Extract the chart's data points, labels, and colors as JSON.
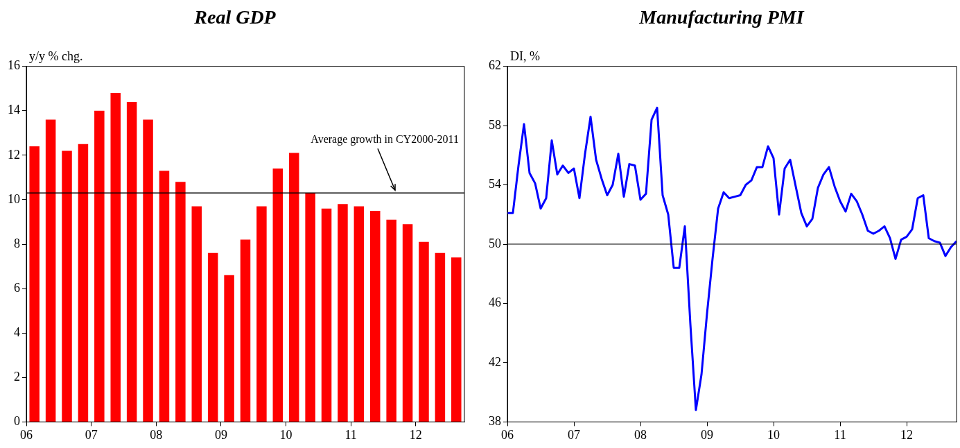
{
  "chart_data": [
    {
      "type": "bar",
      "title": "Real GDP",
      "ylabel": "y/y % chg.",
      "x": [
        2006.125,
        2006.375,
        2006.625,
        2006.875,
        2007.125,
        2007.375,
        2007.625,
        2007.875,
        2008.125,
        2008.375,
        2008.625,
        2008.875,
        2009.125,
        2009.375,
        2009.625,
        2009.875,
        2010.125,
        2010.375,
        2010.625,
        2010.875,
        2011.125,
        2011.375,
        2011.625,
        2011.875,
        2012.125,
        2012.375,
        2012.625
      ],
      "series": [
        {
          "color": "#ff0000",
          "values": [
            12.4,
            13.6,
            12.2,
            12.5,
            14.0,
            14.8,
            14.4,
            13.6,
            11.3,
            10.8,
            9.7,
            7.6,
            6.6,
            8.2,
            9.7,
            11.4,
            12.1,
            10.3,
            9.6,
            9.8,
            9.7,
            9.5,
            9.1,
            8.9,
            8.1,
            7.6,
            7.4
          ]
        }
      ],
      "xlim": [
        2006,
        2012.75
      ],
      "xticks": [
        {
          "value": 2006,
          "label": "06"
        },
        {
          "value": 2007,
          "label": "07"
        },
        {
          "value": 2008,
          "label": "08"
        },
        {
          "value": 2009,
          "label": "09"
        },
        {
          "value": 2010,
          "label": "10"
        },
        {
          "value": 2011,
          "label": "11"
        },
        {
          "value": 2012,
          "label": "12"
        }
      ],
      "ylim": [
        0,
        16
      ],
      "yticks": [
        0,
        2,
        4,
        6,
        8,
        10,
        12,
        14,
        16
      ],
      "ref_lines": [
        {
          "axis": "y",
          "value": 10.3,
          "label": "Average growth in CY2000-2011",
          "color": "#000000"
        }
      ]
    },
    {
      "type": "line",
      "title": "Manufacturing PMI",
      "ylabel": "DI, %",
      "x": [
        2006.0,
        2006.083,
        2006.167,
        2006.25,
        2006.333,
        2006.417,
        2006.5,
        2006.583,
        2006.667,
        2006.75,
        2006.833,
        2006.917,
        2007.0,
        2007.083,
        2007.167,
        2007.25,
        2007.333,
        2007.417,
        2007.5,
        2007.583,
        2007.667,
        2007.75,
        2007.833,
        2007.917,
        2008.0,
        2008.083,
        2008.167,
        2008.25,
        2008.333,
        2008.417,
        2008.5,
        2008.583,
        2008.667,
        2008.75,
        2008.833,
        2008.917,
        2009.0,
        2009.083,
        2009.167,
        2009.25,
        2009.333,
        2009.417,
        2009.5,
        2009.583,
        2009.667,
        2009.75,
        2009.833,
        2009.917,
        2010.0,
        2010.083,
        2010.167,
        2010.25,
        2010.333,
        2010.417,
        2010.5,
        2010.583,
        2010.667,
        2010.75,
        2010.833,
        2010.917,
        2011.0,
        2011.083,
        2011.167,
        2011.25,
        2011.333,
        2011.417,
        2011.5,
        2011.583,
        2011.667,
        2011.75,
        2011.833,
        2011.917,
        2012.0,
        2012.083,
        2012.167,
        2012.25,
        2012.333,
        2012.417,
        2012.5,
        2012.583,
        2012.667,
        2012.75
      ],
      "series": [
        {
          "color": "#0000ff",
          "values": [
            52.1,
            52.1,
            55.3,
            58.1,
            54.8,
            54.1,
            52.4,
            53.1,
            57.0,
            54.7,
            55.3,
            54.8,
            55.1,
            53.1,
            56.1,
            58.6,
            55.7,
            54.4,
            53.3,
            54.0,
            56.1,
            53.2,
            55.4,
            55.3,
            53.0,
            53.4,
            58.4,
            59.2,
            53.3,
            52.0,
            48.4,
            48.4,
            51.2,
            44.6,
            38.8,
            41.2,
            45.3,
            49.0,
            52.4,
            53.5,
            53.1,
            53.2,
            53.3,
            54.0,
            54.3,
            55.2,
            55.2,
            56.6,
            55.8,
            52.0,
            55.1,
            55.7,
            53.9,
            52.1,
            51.2,
            51.7,
            53.8,
            54.7,
            55.2,
            53.9,
            52.9,
            52.2,
            53.4,
            52.9,
            52.0,
            50.9,
            50.7,
            50.9,
            51.2,
            50.4,
            49.0,
            50.3,
            50.5,
            51.0,
            53.1,
            53.3,
            50.4,
            50.2,
            50.1,
            49.2,
            49.8,
            50.2
          ]
        }
      ],
      "xlim": [
        2006,
        2012.75
      ],
      "xticks": [
        {
          "value": 2006,
          "label": "06"
        },
        {
          "value": 2007,
          "label": "07"
        },
        {
          "value": 2008,
          "label": "08"
        },
        {
          "value": 2009,
          "label": "09"
        },
        {
          "value": 2010,
          "label": "10"
        },
        {
          "value": 2011,
          "label": "11"
        },
        {
          "value": 2012,
          "label": "12"
        }
      ],
      "ylim": [
        38,
        62
      ],
      "yticks": [
        38,
        42,
        46,
        50,
        54,
        58,
        62
      ],
      "marker": "none",
      "ref_lines": [
        {
          "axis": "y",
          "value": 50,
          "color": "#000000"
        }
      ]
    }
  ]
}
